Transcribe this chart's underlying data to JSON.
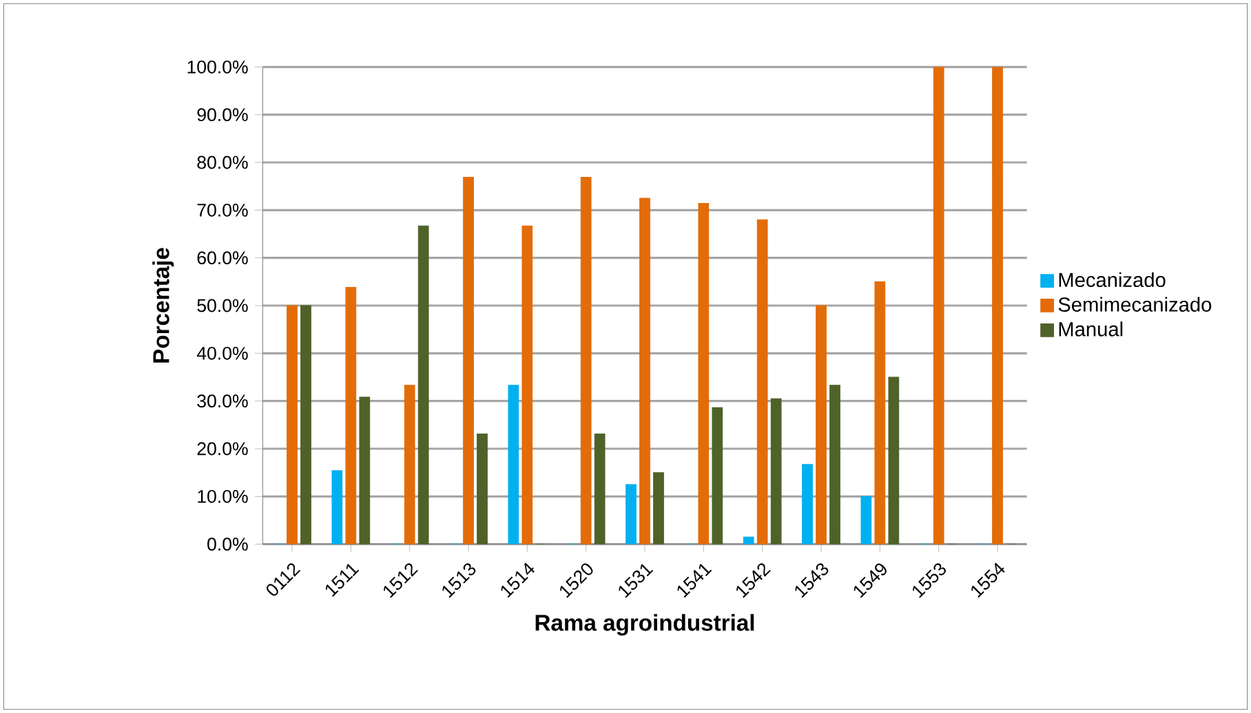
{
  "chart_data": {
    "type": "bar",
    "xlabel": "Rama agroindustrial",
    "ylabel": "Porcentaje",
    "categories": [
      "0112",
      "1511",
      "1512",
      "1513",
      "1514",
      "1520",
      "1531",
      "1541",
      "1542",
      "1543",
      "1549",
      "1553",
      "1554"
    ],
    "series": [
      {
        "name": "Mecanizado",
        "color": "#00b0f0",
        "values": [
          0,
          15.4,
          0,
          0,
          33.3,
          0,
          12.5,
          0,
          1.5,
          16.7,
          10,
          0,
          0
        ]
      },
      {
        "name": "Semimecanizado",
        "color": "#e36c09",
        "values": [
          50,
          53.8,
          33.3,
          76.9,
          66.7,
          76.9,
          72.5,
          71.4,
          68,
          50,
          55,
          100,
          100
        ]
      },
      {
        "name": "Manual",
        "color": "#4f6228",
        "values": [
          50,
          30.8,
          66.7,
          23.1,
          0,
          23.1,
          15,
          28.6,
          30.5,
          33.3,
          35,
          0,
          0
        ]
      }
    ],
    "ylim": [
      0,
      100
    ],
    "yticks": [
      {
        "value": 0,
        "label": "0.0%"
      },
      {
        "value": 10,
        "label": "10.0%"
      },
      {
        "value": 20,
        "label": "20.0%"
      },
      {
        "value": 30,
        "label": "30.0%"
      },
      {
        "value": 40,
        "label": "40.0%"
      },
      {
        "value": 50,
        "label": "50.0%"
      },
      {
        "value": 60,
        "label": "60.0%"
      },
      {
        "value": 70,
        "label": "70.0%"
      },
      {
        "value": 80,
        "label": "80.0%"
      },
      {
        "value": 90,
        "label": "90.0%"
      },
      {
        "value": 100,
        "label": "100.0%"
      }
    ],
    "grid": "y",
    "legend": "right"
  }
}
